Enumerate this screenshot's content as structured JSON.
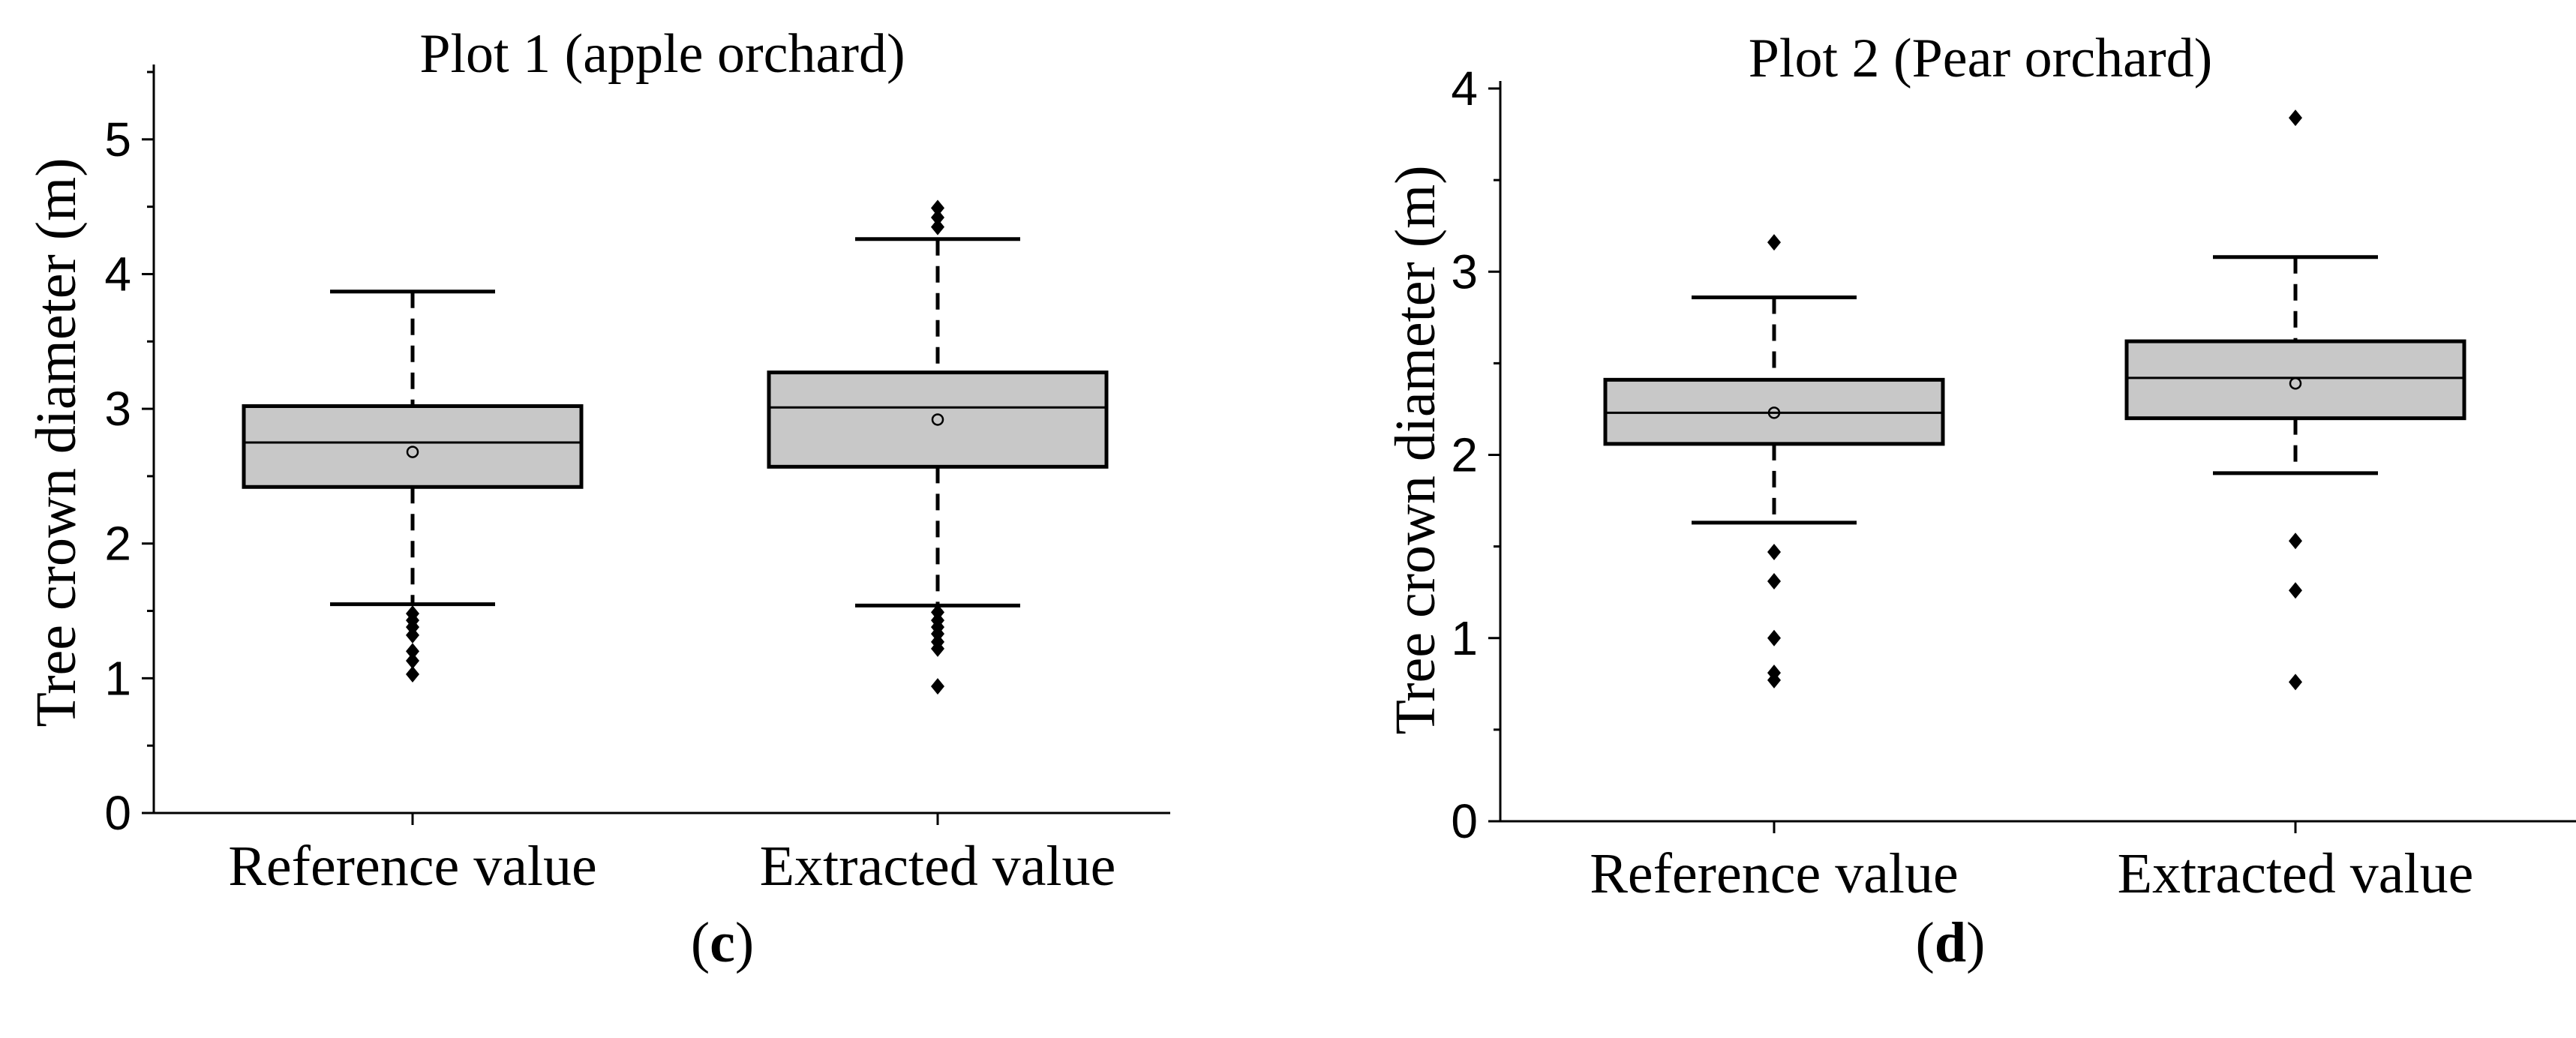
{
  "chart_data": [
    {
      "type": "box",
      "title": "Plot 1 (apple orchard)",
      "ylabel": "Tree crown diameter (m)",
      "xlabel": "",
      "ylim": [
        0,
        5.5
      ],
      "yticks": [
        0,
        1,
        2,
        3,
        4,
        5
      ],
      "ytick_labels": [
        "0",
        "1",
        "2",
        "3",
        "4",
        "5"
      ],
      "categories": [
        "Reference value",
        "Extracted value"
      ],
      "colors": {
        "box_fill": "#c8c8c8",
        "stroke": "#000000"
      },
      "boxes": [
        {
          "name": "Reference value",
          "whisker_low": 1.55,
          "q1": 2.42,
          "median": 2.75,
          "q3": 3.02,
          "whisker_high": 3.87,
          "mean": 2.68,
          "outliers": [
            1.03,
            1.13,
            1.2,
            1.32,
            1.38,
            1.43,
            1.48
          ]
        },
        {
          "name": "Extracted value",
          "whisker_low": 1.54,
          "q1": 2.57,
          "median": 3.01,
          "q3": 3.27,
          "whisker_high": 4.26,
          "mean": 2.92,
          "outliers": [
            0.94,
            1.22,
            1.27,
            1.33,
            1.38,
            1.43,
            1.49,
            4.35,
            4.42,
            4.49
          ]
        }
      ],
      "panel_label": "(c)"
    },
    {
      "type": "box",
      "title": "Plot 2 (Pear orchard)",
      "ylabel": "Tree crown diameter (m)",
      "xlabel": "",
      "ylim": [
        0,
        4
      ],
      "yticks": [
        0,
        1,
        2,
        3,
        4
      ],
      "ytick_labels": [
        "0",
        "1",
        "2",
        "3",
        "4"
      ],
      "categories": [
        "Reference value",
        "Extracted value"
      ],
      "colors": {
        "box_fill": "#c8c8c8",
        "stroke": "#000000"
      },
      "boxes": [
        {
          "name": "Reference value",
          "whisker_low": 1.63,
          "q1": 2.06,
          "median": 2.23,
          "q3": 2.41,
          "whisker_high": 2.86,
          "mean": 2.23,
          "outliers": [
            0.77,
            0.81,
            1.0,
            1.31,
            1.47,
            3.16
          ]
        },
        {
          "name": "Extracted value",
          "whisker_low": 1.9,
          "q1": 2.2,
          "median": 2.42,
          "q3": 2.62,
          "whisker_high": 3.08,
          "mean": 2.39,
          "outliers": [
            0.76,
            1.26,
            1.53,
            3.84
          ]
        }
      ],
      "panel_label": "(d)"
    }
  ],
  "labels": {
    "c": {
      "open": "(",
      "letter": "c",
      "close": ")"
    },
    "d": {
      "open": "(",
      "letter": "d",
      "close": ")"
    }
  }
}
